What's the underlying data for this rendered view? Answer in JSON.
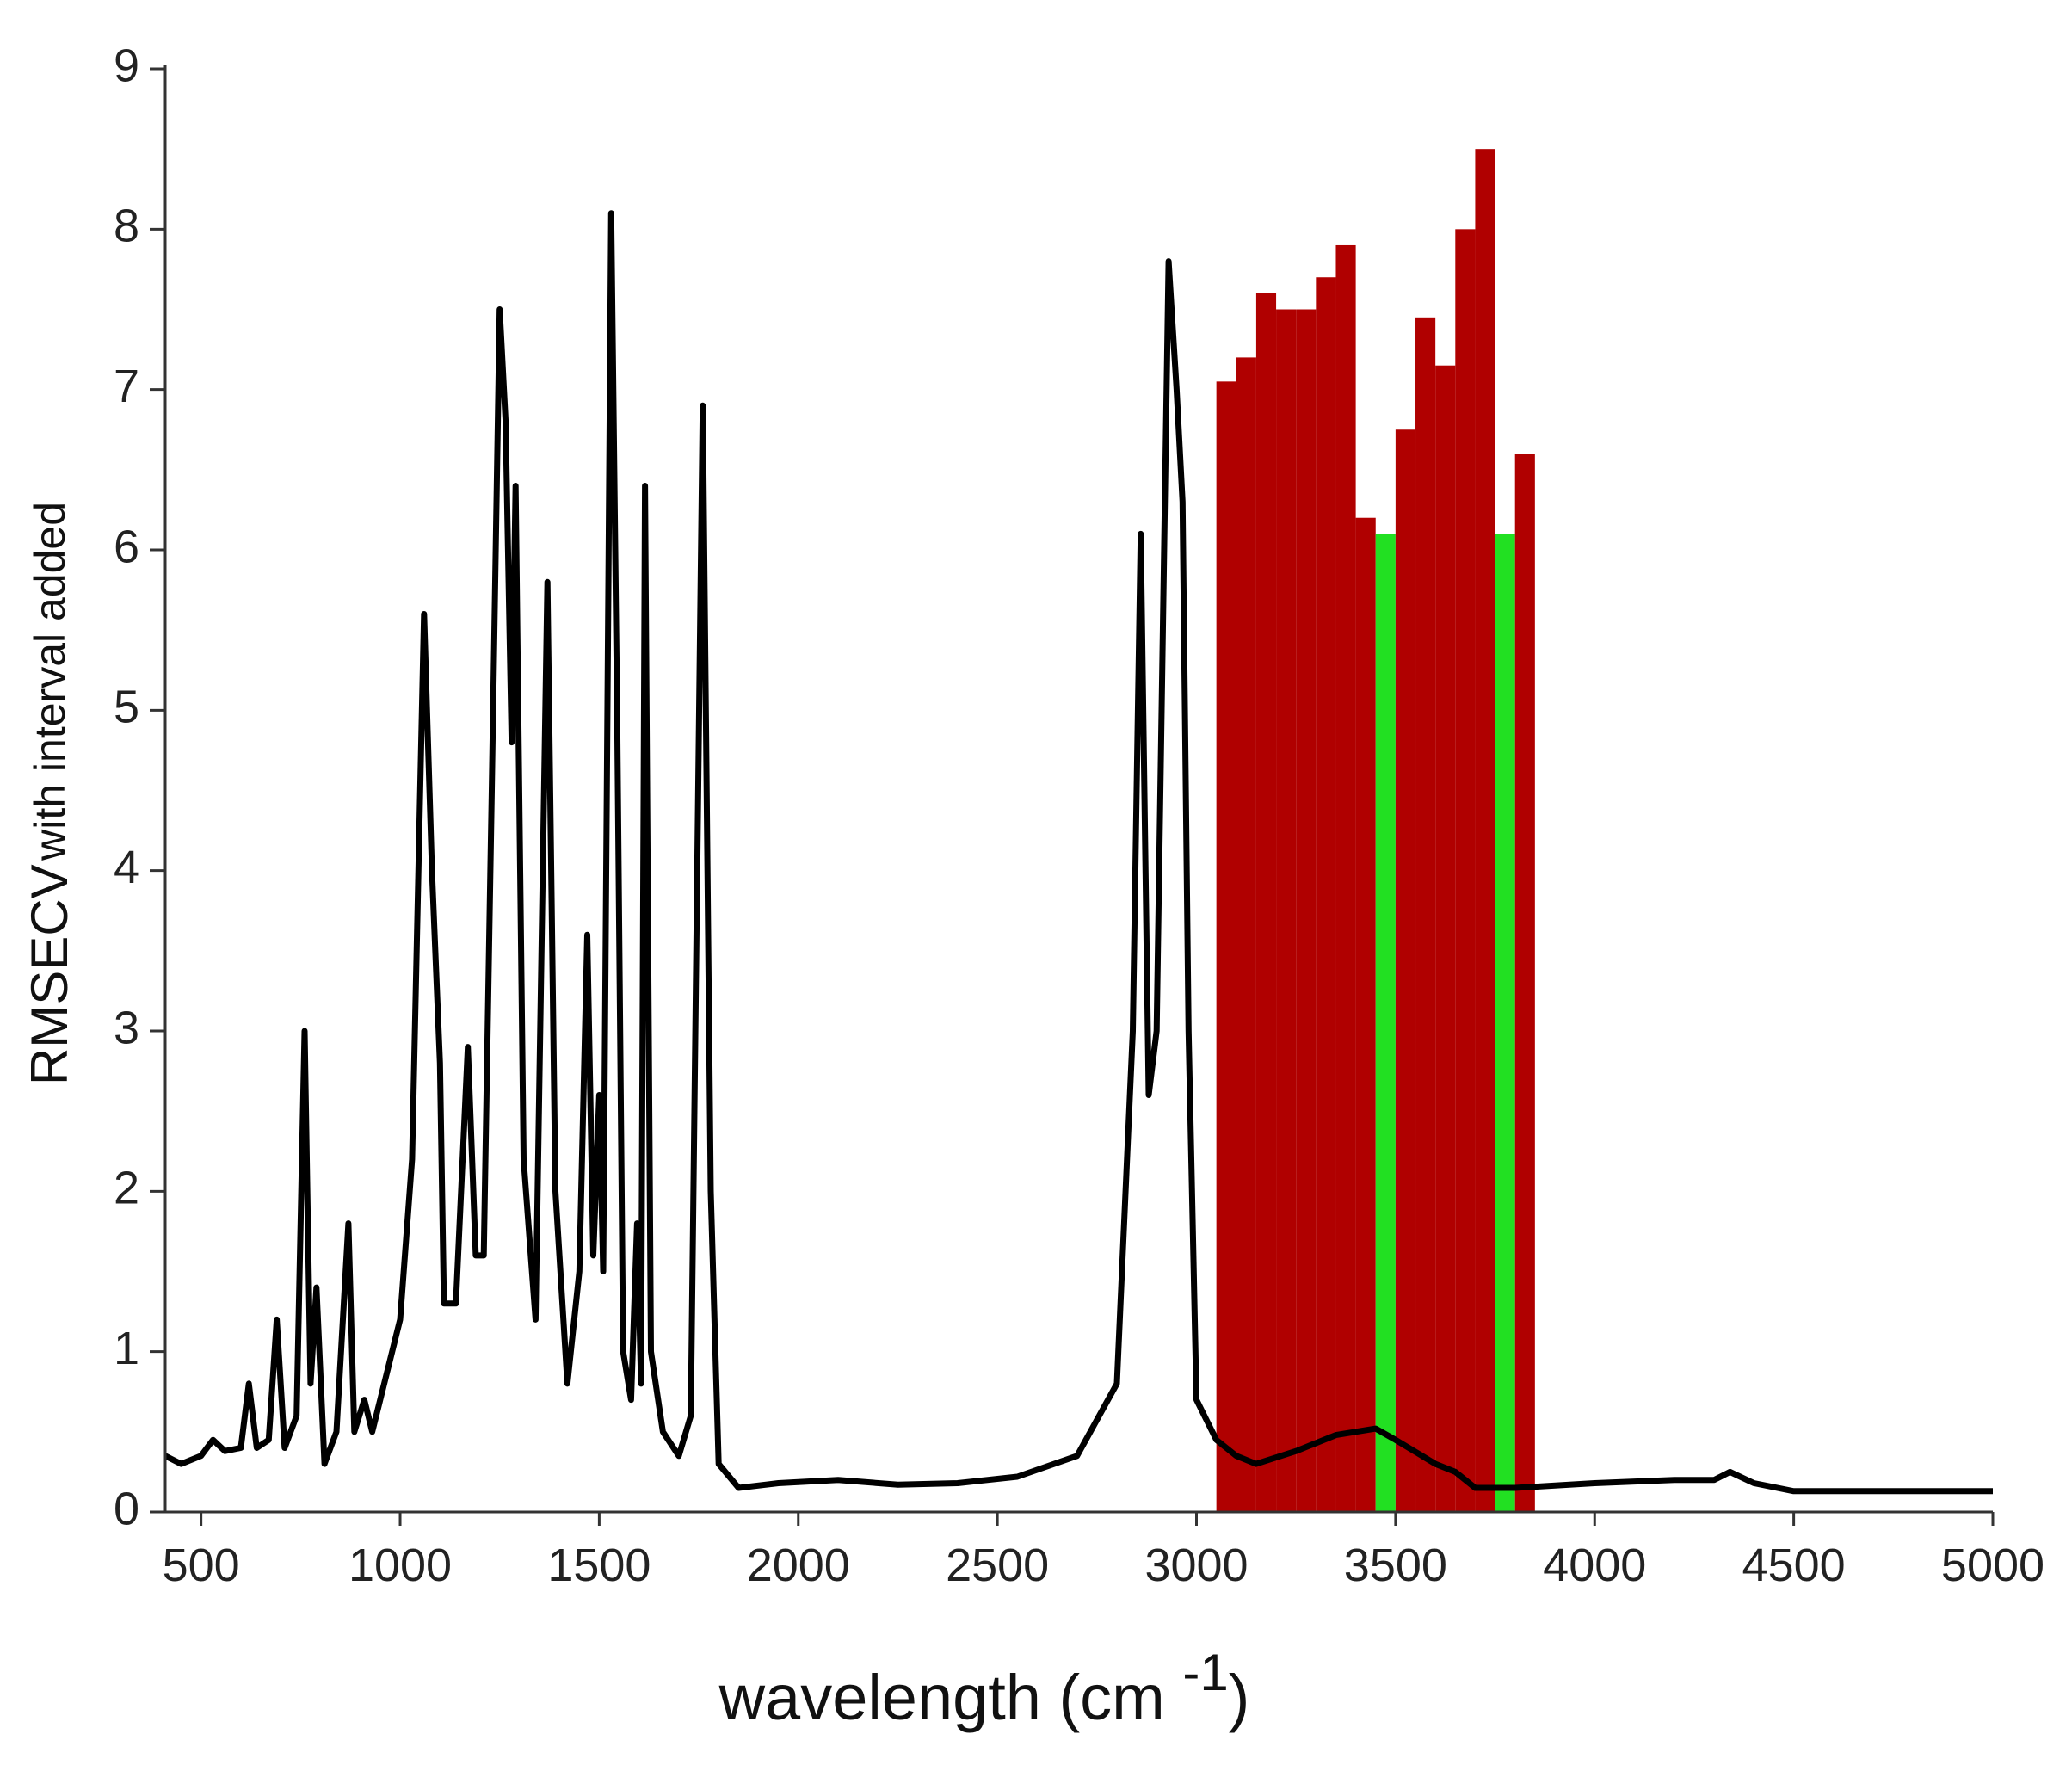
{
  "chart_data": {
    "type": "bar-line",
    "y_label": {
      "main": "RMSECV",
      "rest": "with interval added"
    },
    "x_label": {
      "main": "wavelength (cm",
      "superscript": "-1",
      "close": ")"
    },
    "xlim": [
      410,
      5000
    ],
    "xticks": [
      500,
      1000,
      1500,
      2000,
      2500,
      3000,
      3500,
      4000,
      4500,
      5000
    ],
    "ylim": [
      0,
      9
    ],
    "yticks": [
      0,
      1,
      2,
      3,
      4,
      5,
      6,
      7,
      8,
      9
    ],
    "bars": {
      "bins": [
        3050,
        3100,
        3150,
        3200,
        3250,
        3300,
        3350,
        3400,
        3450,
        3500,
        3550,
        3600,
        3650,
        3700,
        3750,
        3800,
        3850
      ],
      "values": [
        7.05,
        7.2,
        7.6,
        7.5,
        7.5,
        7.7,
        7.9,
        6.2,
        6.1,
        6.75,
        7.45,
        7.15,
        8.0,
        8.5,
        6.1,
        6.6
      ],
      "colors": [
        "#b00000",
        "#b00000",
        "#b00000",
        "#b00000",
        "#b00000",
        "#b00000",
        "#b00000",
        "#b00000",
        "#22e022",
        "#b00000",
        "#b00000",
        "#b00000",
        "#b00000",
        "#b00000",
        "#22e022",
        "#b00000"
      ]
    },
    "line": {
      "color": "#000000",
      "x": [
        410,
        450,
        500,
        530,
        560,
        600,
        620,
        640,
        670,
        690,
        710,
        740,
        760,
        775,
        790,
        810,
        840,
        870,
        885,
        910,
        930,
        960,
        1000,
        1030,
        1060,
        1080,
        1100,
        1110,
        1140,
        1170,
        1190,
        1210,
        1230,
        1250,
        1265,
        1280,
        1290,
        1310,
        1340,
        1370,
        1390,
        1420,
        1450,
        1470,
        1485,
        1500,
        1510,
        1530,
        1545,
        1560,
        1580,
        1595,
        1605,
        1615,
        1630,
        1660,
        1700,
        1730,
        1760,
        1780,
        1800,
        1850,
        1950,
        2100,
        2250,
        2400,
        2550,
        2700,
        2800,
        2840,
        2860,
        2880,
        2900,
        2930,
        2950,
        2965,
        2980,
        3000,
        3050,
        3100,
        3150,
        3250,
        3350,
        3450,
        3500,
        3600,
        3650,
        3700,
        3800,
        4000,
        4200,
        4300,
        4340,
        4400,
        4500,
        5000
      ],
      "values": [
        0.35,
        0.3,
        0.35,
        0.45,
        0.38,
        0.4,
        0.8,
        0.4,
        0.45,
        1.2,
        0.4,
        0.6,
        3.0,
        0.8,
        1.4,
        0.3,
        0.5,
        1.8,
        0.5,
        0.7,
        0.5,
        0.8,
        1.2,
        2.2,
        5.6,
        4.0,
        2.8,
        1.3,
        1.3,
        2.9,
        1.6,
        1.6,
        4.5,
        7.5,
        6.8,
        4.8,
        6.4,
        2.2,
        1.2,
        5.8,
        2.0,
        0.8,
        1.5,
        3.6,
        1.6,
        2.6,
        1.5,
        8.1,
        5.0,
        1.0,
        0.7,
        1.8,
        0.8,
        6.4,
        1.0,
        0.5,
        0.35,
        0.6,
        6.9,
        2.0,
        0.3,
        0.15,
        0.18,
        0.2,
        0.17,
        0.18,
        0.22,
        0.35,
        0.8,
        3.0,
        6.1,
        2.6,
        3.0,
        7.8,
        7.0,
        6.3,
        3.0,
        0.7,
        0.45,
        0.35,
        0.3,
        0.38,
        0.48,
        0.52,
        0.45,
        0.3,
        0.25,
        0.15,
        0.15,
        0.18,
        0.2,
        0.2,
        0.25,
        0.18,
        0.13,
        0.13
      ]
    }
  }
}
